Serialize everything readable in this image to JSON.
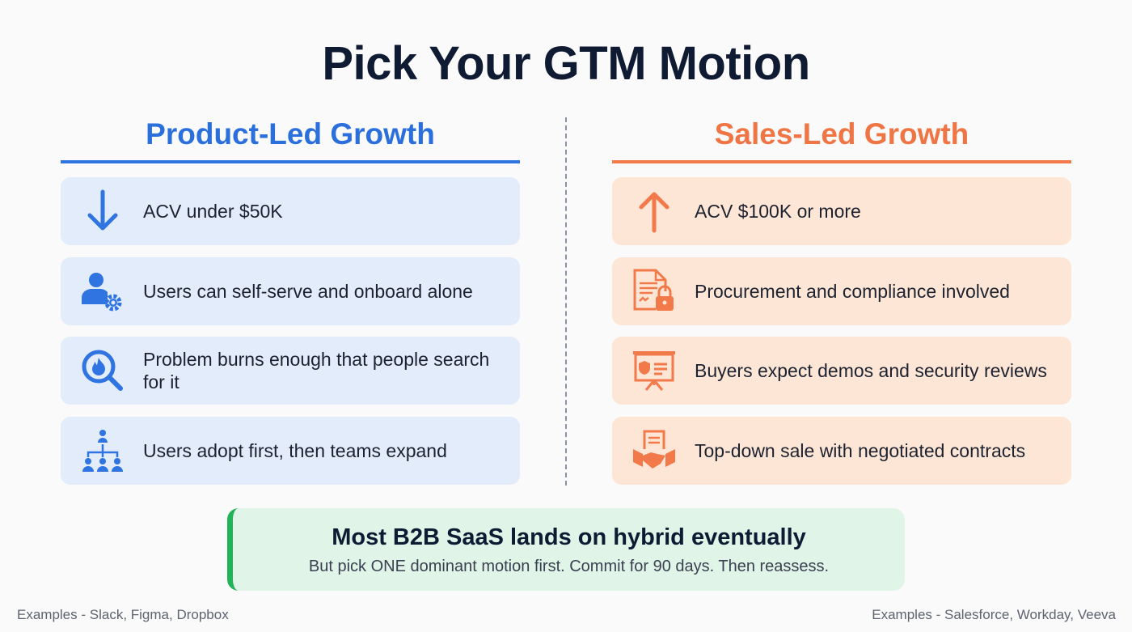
{
  "title": "Pick Your GTM Motion",
  "left": {
    "heading": "Product-Led Growth",
    "color": "#2a6fdb",
    "items": [
      {
        "icon": "arrow-down-icon",
        "text": "ACV under $50K"
      },
      {
        "icon": "user-gear-icon",
        "text": "Users can self-serve and onboard alone"
      },
      {
        "icon": "search-fire-icon",
        "text": "Problem burns enough that people search for it"
      },
      {
        "icon": "org-hierarchy-icon",
        "text": "Users adopt first, then teams expand"
      }
    ],
    "footer": "Examples - Slack, Figma, Dropbox"
  },
  "right": {
    "heading": "Sales-Led Growth",
    "color": "#f07545",
    "items": [
      {
        "icon": "arrow-up-icon",
        "text": "ACV $100K or more"
      },
      {
        "icon": "document-lock-icon",
        "text": "Procurement and compliance involved"
      },
      {
        "icon": "presentation-shield-icon",
        "text": "Buyers expect demos and security reviews"
      },
      {
        "icon": "handshake-contract-icon",
        "text": "Top-down sale with negotiated contracts"
      }
    ],
    "footer": "Examples - Salesforce, Workday, Veeva"
  },
  "callout": {
    "title": "Most B2B SaaS lands on hybrid eventually",
    "subtitle": "But pick ONE dominant motion first. Commit for 90 days. Then reassess.",
    "accent": "#22b25a"
  }
}
